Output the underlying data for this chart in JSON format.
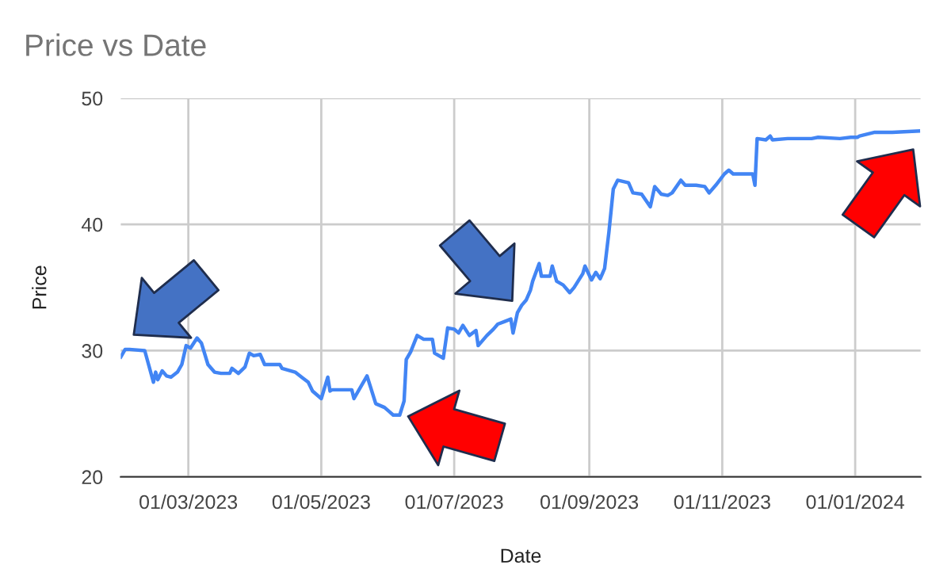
{
  "chart_data": {
    "type": "line",
    "title": "Price vs Date",
    "xlabel": "Date",
    "ylabel": "Price",
    "x": [
      "2023-01-29",
      "2023-01-31",
      "2023-02-02",
      "2023-02-09",
      "2023-02-13",
      "2023-02-14",
      "2023-02-15",
      "2023-02-17",
      "2023-02-19",
      "2023-02-21",
      "2023-02-24",
      "2023-02-26",
      "2023-02-28",
      "2023-03-02",
      "2023-03-05",
      "2023-03-07",
      "2023-03-10",
      "2023-03-13",
      "2023-03-16",
      "2023-03-20",
      "2023-03-21",
      "2023-03-24",
      "2023-03-27",
      "2023-03-29",
      "2023-03-31",
      "2023-04-03",
      "2023-04-05",
      "2023-04-12",
      "2023-04-13",
      "2023-04-19",
      "2023-04-22",
      "2023-04-25",
      "2023-04-27",
      "2023-05-01",
      "2023-05-04",
      "2023-05-05",
      "2023-05-06",
      "2023-05-15",
      "2023-05-16",
      "2023-05-18",
      "2023-05-22",
      "2023-05-26",
      "2023-05-30",
      "2023-06-01",
      "2023-06-03",
      "2023-06-06",
      "2023-06-08",
      "2023-06-09",
      "2023-06-11",
      "2023-06-14",
      "2023-06-17",
      "2023-06-21",
      "2023-06-22",
      "2023-06-26",
      "2023-06-28",
      "2023-07-01",
      "2023-07-03",
      "2023-07-05",
      "2023-07-08",
      "2023-07-11",
      "2023-07-12",
      "2023-07-16",
      "2023-07-19",
      "2023-07-21",
      "2023-07-24",
      "2023-07-27",
      "2023-07-28",
      "2023-07-30",
      "2023-08-01",
      "2023-08-03",
      "2023-08-05",
      "2023-08-06",
      "2023-08-09",
      "2023-08-10",
      "2023-08-12",
      "2023-08-14",
      "2023-08-15",
      "2023-08-17",
      "2023-08-20",
      "2023-08-23",
      "2023-08-25",
      "2023-08-29",
      "2023-08-30",
      "2023-09-02",
      "2023-09-04",
      "2023-09-06",
      "2023-09-08",
      "2023-09-10",
      "2023-09-12",
      "2023-09-14",
      "2023-09-19",
      "2023-09-21",
      "2023-09-25",
      "2023-09-27",
      "2023-09-29",
      "2023-10-01",
      "2023-10-04",
      "2023-10-07",
      "2023-10-09",
      "2023-10-13",
      "2023-10-15",
      "2023-10-20",
      "2023-10-24",
      "2023-10-26",
      "2023-10-29",
      "2023-11-02",
      "2023-11-04",
      "2023-11-06",
      "2023-11-15",
      "2023-11-16",
      "2023-11-17",
      "2023-11-21",
      "2023-11-23",
      "2023-11-24",
      "2023-12-01",
      "2023-12-12",
      "2023-12-15",
      "2023-12-25",
      "2023-12-30",
      "2024-01-02",
      "2024-01-03",
      "2024-01-10",
      "2024-01-18",
      "2024-01-30"
    ],
    "series": [
      {
        "color": "#4285f4",
        "values": [
          29.5,
          30.1,
          30.1,
          30.0,
          27.5,
          28.3,
          27.7,
          28.4,
          28.0,
          27.9,
          28.3,
          28.9,
          30.4,
          30.2,
          31.0,
          30.6,
          28.9,
          28.3,
          28.2,
          28.2,
          28.6,
          28.2,
          28.7,
          29.8,
          29.6,
          29.7,
          28.9,
          28.9,
          28.6,
          28.3,
          27.9,
          27.5,
          26.8,
          26.2,
          27.9,
          26.8,
          26.9,
          26.9,
          26.2,
          26.8,
          28.0,
          25.8,
          25.5,
          25.2,
          24.9,
          24.9,
          26.0,
          29.3,
          29.9,
          31.2,
          30.9,
          30.9,
          29.8,
          29.4,
          31.8,
          31.7,
          31.4,
          32.0,
          31.2,
          31.6,
          30.4,
          31.2,
          31.7,
          32.1,
          32.3,
          32.5,
          31.4,
          33.0,
          33.6,
          34.0,
          34.8,
          35.5,
          36.9,
          35.9,
          35.9,
          35.9,
          36.7,
          35.5,
          35.2,
          34.6,
          35.0,
          36.1,
          36.7,
          35.6,
          36.2,
          35.7,
          36.5,
          39.4,
          42.8,
          43.5,
          43.3,
          42.5,
          42.4,
          41.9,
          41.4,
          43.0,
          42.4,
          42.3,
          42.5,
          43.5,
          43.1,
          43.1,
          43.0,
          42.5,
          43.1,
          44.0,
          44.3,
          44.0,
          44.0,
          43.1,
          46.8,
          46.7,
          47.0,
          46.7,
          46.8,
          46.8,
          46.9,
          46.8,
          46.9,
          46.9,
          47.0,
          47.3,
          47.3,
          47.4
        ]
      }
    ],
    "xlim": [
      "2023-01-29",
      "2024-01-31"
    ],
    "xticks": [
      {
        "value": "2023-03-01",
        "label": "01/03/2023"
      },
      {
        "value": "2023-05-01",
        "label": "01/05/2023"
      },
      {
        "value": "2023-07-01",
        "label": "01/07/2023"
      },
      {
        "value": "2023-09-01",
        "label": "01/09/2023"
      },
      {
        "value": "2023-11-01",
        "label": "01/11/2023"
      },
      {
        "value": "2024-01-01",
        "label": "01/01/2024"
      }
    ],
    "ylim": [
      20,
      50
    ],
    "yticks": [
      20,
      30,
      40,
      50
    ],
    "grid": true,
    "marker": "none",
    "line_style": "solid"
  }
}
